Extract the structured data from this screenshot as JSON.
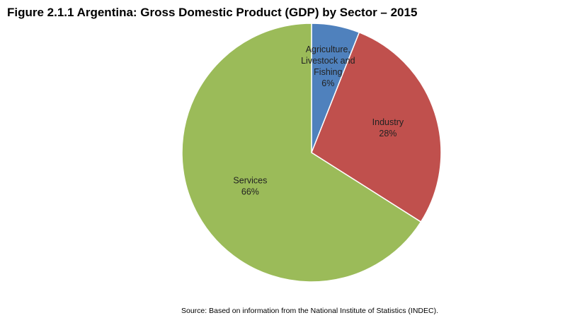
{
  "title": "Figure 2.1.1 Argentina: Gross Domestic Product (GDP) by Sector – 2015",
  "source": "Source: Based on information from the National Institute of Statistics (INDEC).",
  "chart_data": {
    "type": "pie",
    "title": "Figure 2.1.1 Argentina: Gross Domestic Product (GDP) by Sector – 2015",
    "start_angle": "12 o'clock",
    "direction": "clockwise",
    "slices": [
      {
        "label": "Agriculture, Livestock and Fishing",
        "label_lines": [
          "Agriculture,",
          "Livestock and",
          "Fishing"
        ],
        "value": 6,
        "value_label": "6%",
        "color": "#4F81BD"
      },
      {
        "label": "Industry",
        "label_lines": [
          "Industry"
        ],
        "value": 28,
        "value_label": "28%",
        "color": "#C0504D"
      },
      {
        "label": "Services",
        "label_lines": [
          "Services"
        ],
        "value": 66,
        "value_label": "66%",
        "color": "#9BBB59"
      }
    ]
  }
}
